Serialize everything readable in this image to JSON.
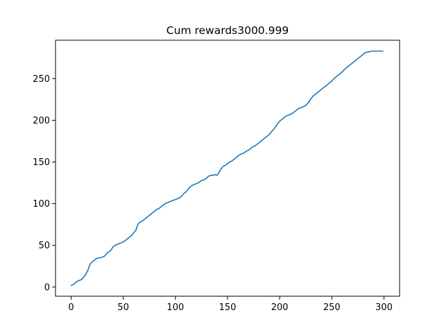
{
  "chart_data": {
    "type": "line",
    "title": "Cum rewards3000.999",
    "xlabel": "",
    "ylabel": "",
    "xlim": [
      -15,
      315
    ],
    "ylim": [
      -11,
      296
    ],
    "xticks": [
      0,
      50,
      100,
      150,
      200,
      250,
      300
    ],
    "yticks": [
      0,
      50,
      100,
      150,
      200,
      250
    ],
    "grid": false,
    "legend": "none",
    "series_color": "#1f77b4",
    "series": [
      {
        "x": [
          0,
          2,
          4,
          6,
          8,
          10,
          12,
          14,
          16,
          18,
          20,
          22,
          24,
          26,
          28,
          30,
          32,
          34,
          36,
          38,
          40,
          42,
          44,
          46,
          48,
          50,
          52,
          54,
          56,
          58,
          60,
          62,
          64,
          66,
          68,
          70,
          72,
          74,
          76,
          78,
          80,
          82,
          84,
          86,
          88,
          90,
          92,
          94,
          96,
          98,
          100,
          102,
          104,
          106,
          108,
          110,
          112,
          114,
          116,
          118,
          120,
          122,
          124,
          126,
          128,
          130,
          132,
          134,
          136,
          138,
          140,
          142,
          144,
          146,
          148,
          150,
          152,
          154,
          156,
          158,
          160,
          162,
          164,
          166,
          168,
          170,
          172,
          174,
          176,
          178,
          180,
          182,
          184,
          186,
          188,
          190,
          192,
          194,
          196,
          198,
          200,
          202,
          204,
          206,
          208,
          210,
          212,
          214,
          216,
          218,
          220,
          222,
          224,
          226,
          228,
          230,
          232,
          234,
          236,
          238,
          240,
          242,
          244,
          246,
          248,
          250,
          252,
          254,
          256,
          258,
          260,
          262,
          264,
          266,
          268,
          270,
          272,
          274,
          276,
          278,
          280,
          282,
          284,
          286,
          288,
          290,
          292,
          294,
          296,
          298,
          299
        ],
        "values": [
          2,
          3,
          5,
          7,
          8,
          9,
          12,
          15,
          20,
          27,
          30,
          32,
          34,
          35,
          35,
          36,
          37,
          40,
          42,
          44,
          48,
          50,
          51,
          52,
          53,
          54,
          56,
          58,
          60,
          62,
          65,
          68,
          75,
          78,
          79,
          81,
          83,
          85,
          87,
          89,
          91,
          93,
          94,
          96,
          98,
          100,
          101,
          102,
          103,
          104,
          105,
          106,
          107,
          109,
          112,
          114,
          117,
          120,
          122,
          123,
          124,
          125,
          127,
          128,
          129,
          131,
          133,
          134,
          134,
          135,
          134,
          138,
          142,
          145,
          146,
          148,
          150,
          151,
          153,
          155,
          157,
          159,
          160,
          161,
          163,
          164,
          166,
          168,
          169,
          171,
          173,
          175,
          177,
          179,
          181,
          183,
          186,
          189,
          192,
          196,
          199,
          201,
          203,
          205,
          206,
          207,
          208,
          210,
          212,
          214,
          215,
          216,
          217,
          219,
          222,
          226,
          229,
          231,
          233,
          235,
          237,
          239,
          241,
          243,
          245,
          247,
          250,
          252,
          254,
          256,
          258,
          261,
          263,
          265,
          267,
          269,
          271,
          273,
          275,
          277,
          279,
          281,
          282,
          282,
          283,
          283,
          283,
          283,
          283,
          283,
          283
        ]
      }
    ]
  }
}
